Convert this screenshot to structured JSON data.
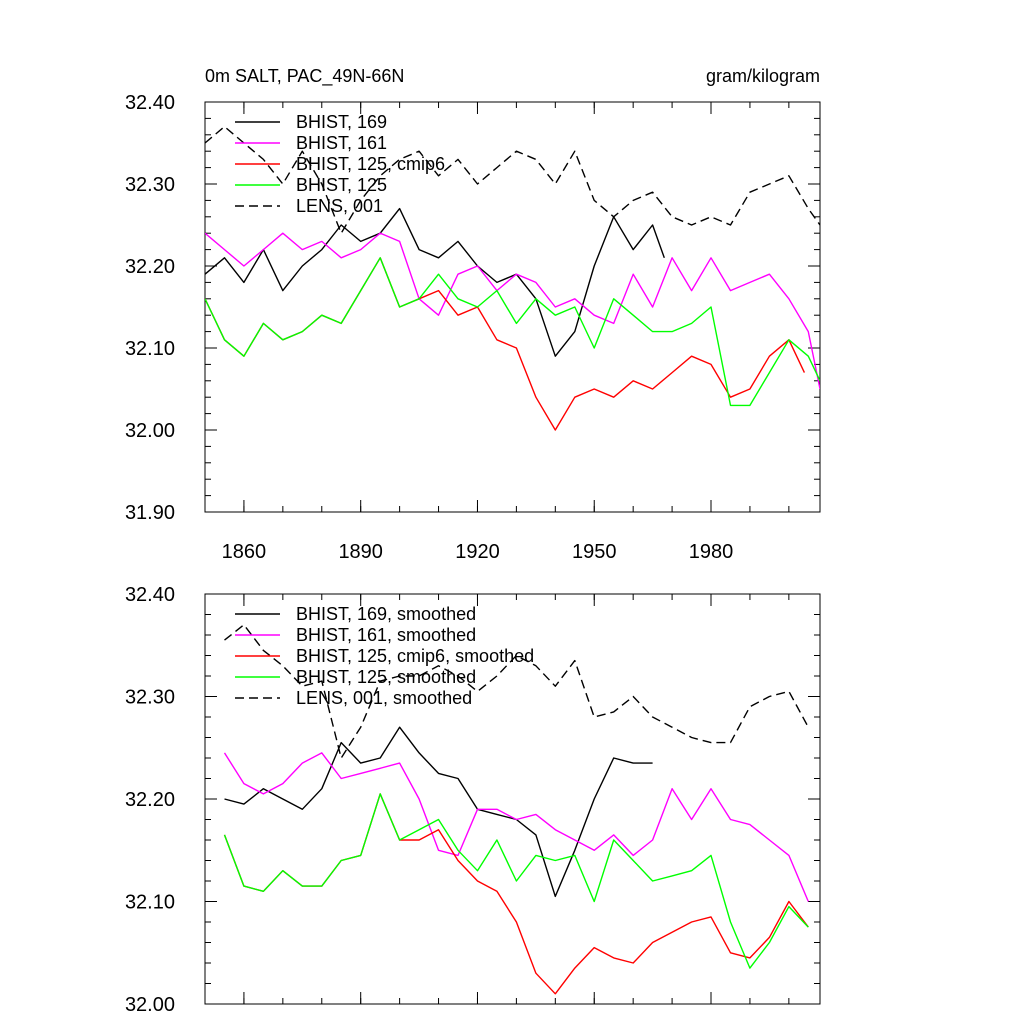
{
  "figure": {
    "title_left": "0m SALT, PAC_49N-66N",
    "title_right": "gram/kilogram"
  },
  "chart_data": [
    {
      "type": "line",
      "title": "0m SALT, PAC_49N-66N",
      "units": "gram/kilogram",
      "xlabel": "",
      "ylabel": "",
      "xlim": [
        1850,
        2008
      ],
      "ylim": [
        31.9,
        32.4
      ],
      "xticks": [
        1860,
        1890,
        1920,
        1950,
        1980
      ],
      "yticks": [
        31.9,
        32.0,
        32.1,
        32.2,
        32.3,
        32.4
      ],
      "yticklabels": [
        "31.90",
        "32.00",
        "32.10",
        "32.20",
        "32.30",
        "32.40"
      ],
      "xticklabels": [
        "1860",
        "1890",
        "1920",
        "1950",
        "1980"
      ],
      "legend_location": "top-left",
      "series": [
        {
          "name": "BHIST, 169",
          "color": "#000000",
          "dash": "solid",
          "x": [
            1850,
            1855,
            1860,
            1865,
            1870,
            1875,
            1880,
            1885,
            1890,
            1895,
            1900,
            1905,
            1910,
            1915,
            1920,
            1925,
            1930,
            1935,
            1940,
            1945,
            1950,
            1955,
            1960,
            1965,
            1968
          ],
          "y": [
            32.19,
            32.21,
            32.18,
            32.22,
            32.17,
            32.2,
            32.22,
            32.25,
            32.23,
            32.24,
            32.27,
            32.22,
            32.21,
            32.23,
            32.2,
            32.18,
            32.19,
            32.16,
            32.09,
            32.12,
            32.2,
            32.26,
            32.22,
            32.25,
            32.21
          ]
        },
        {
          "name": "BHIST, 161",
          "color": "#ff00ff",
          "dash": "solid",
          "x": [
            1850,
            1855,
            1860,
            1865,
            1870,
            1875,
            1880,
            1885,
            1890,
            1895,
            1900,
            1905,
            1910,
            1915,
            1920,
            1925,
            1930,
            1935,
            1940,
            1945,
            1950,
            1955,
            1960,
            1965,
            1970,
            1975,
            1980,
            1985,
            1990,
            1995,
            2000,
            2005,
            2008
          ],
          "y": [
            32.24,
            32.22,
            32.2,
            32.22,
            32.24,
            32.22,
            32.23,
            32.21,
            32.22,
            32.24,
            32.23,
            32.16,
            32.14,
            32.19,
            32.2,
            32.17,
            32.19,
            32.18,
            32.15,
            32.16,
            32.14,
            32.13,
            32.19,
            32.15,
            32.21,
            32.17,
            32.21,
            32.17,
            32.18,
            32.19,
            32.16,
            32.12,
            32.05
          ]
        },
        {
          "name": "BHIST, 125, cmip6",
          "color": "#ff0000",
          "dash": "solid",
          "x": [
            1850,
            1855,
            1860,
            1865,
            1870,
            1875,
            1880,
            1885,
            1890,
            1895,
            1900,
            1905,
            1910,
            1915,
            1920,
            1925,
            1930,
            1935,
            1940,
            1945,
            1950,
            1955,
            1960,
            1965,
            1970,
            1975,
            1980,
            1985,
            1990,
            1995,
            2000,
            2004
          ],
          "y": [
            32.16,
            32.11,
            32.09,
            32.13,
            32.11,
            32.12,
            32.14,
            32.13,
            32.17,
            32.21,
            32.15,
            32.16,
            32.17,
            32.14,
            32.15,
            32.11,
            32.1,
            32.04,
            32.0,
            32.04,
            32.05,
            32.04,
            32.06,
            32.05,
            32.07,
            32.09,
            32.08,
            32.04,
            32.05,
            32.09,
            32.11,
            32.07
          ]
        },
        {
          "name": "BHIST, 125",
          "color": "#00ff00",
          "dash": "solid",
          "x": [
            1850,
            1855,
            1860,
            1865,
            1870,
            1875,
            1880,
            1885,
            1890,
            1895,
            1900,
            1905,
            1910,
            1915,
            1920,
            1925,
            1930,
            1935,
            1940,
            1945,
            1950,
            1955,
            1960,
            1965,
            1970,
            1975,
            1980,
            1985,
            1990,
            1995,
            2000,
            2005,
            2008
          ],
          "y": [
            32.16,
            32.11,
            32.09,
            32.13,
            32.11,
            32.12,
            32.14,
            32.13,
            32.17,
            32.21,
            32.15,
            32.16,
            32.19,
            32.16,
            32.15,
            32.17,
            32.13,
            32.16,
            32.14,
            32.15,
            32.1,
            32.16,
            32.14,
            32.12,
            32.12,
            32.13,
            32.15,
            32.03,
            32.03,
            32.07,
            32.11,
            32.09,
            32.06
          ]
        },
        {
          "name": "LENS, 001",
          "color": "#000000",
          "dash": "dashed",
          "x": [
            1850,
            1855,
            1860,
            1865,
            1870,
            1875,
            1880,
            1885,
            1890,
            1895,
            1900,
            1905,
            1910,
            1915,
            1920,
            1925,
            1930,
            1935,
            1940,
            1945,
            1950,
            1955,
            1960,
            1965,
            1970,
            1975,
            1980,
            1985,
            1990,
            1995,
            2000,
            2005,
            2008
          ],
          "y": [
            32.35,
            32.37,
            32.35,
            32.33,
            32.3,
            32.34,
            32.3,
            32.24,
            32.28,
            32.31,
            32.33,
            32.34,
            32.31,
            32.33,
            32.3,
            32.32,
            32.34,
            32.33,
            32.3,
            32.34,
            32.28,
            32.26,
            32.28,
            32.29,
            32.26,
            32.25,
            32.26,
            32.25,
            32.29,
            32.3,
            32.31,
            32.27,
            32.25
          ]
        }
      ]
    },
    {
      "type": "line",
      "title": "",
      "xlim": [
        1850,
        2008
      ],
      "ylim": [
        32.0,
        32.4
      ],
      "xticks": [
        1860,
        1890,
        1920,
        1950,
        1980
      ],
      "yticks": [
        32.0,
        32.1,
        32.2,
        32.3,
        32.4
      ],
      "yticklabels": [
        "32.00",
        "32.10",
        "32.20",
        "32.30",
        "32.40"
      ],
      "legend_location": "top-left",
      "series": [
        {
          "name": "BHIST, 169, smoothed",
          "color": "#000000",
          "dash": "solid",
          "x": [
            1855,
            1860,
            1865,
            1870,
            1875,
            1880,
            1885,
            1890,
            1895,
            1900,
            1905,
            1910,
            1915,
            1920,
            1925,
            1930,
            1935,
            1940,
            1945,
            1950,
            1955,
            1960,
            1965
          ],
          "y": [
            32.2,
            32.195,
            32.21,
            32.2,
            32.19,
            32.21,
            32.255,
            32.235,
            32.24,
            32.27,
            32.245,
            32.225,
            32.22,
            32.19,
            32.185,
            32.18,
            32.165,
            32.105,
            32.15,
            32.2,
            32.24,
            32.235,
            32.235
          ]
        },
        {
          "name": "BHIST, 161, smoothed",
          "color": "#ff00ff",
          "dash": "solid",
          "x": [
            1855,
            1860,
            1865,
            1870,
            1875,
            1880,
            1885,
            1890,
            1895,
            1900,
            1905,
            1910,
            1915,
            1920,
            1925,
            1930,
            1935,
            1940,
            1945,
            1950,
            1955,
            1960,
            1965,
            1970,
            1975,
            1980,
            1985,
            1990,
            1995,
            2000,
            2005
          ],
          "y": [
            32.245,
            32.215,
            32.205,
            32.215,
            32.235,
            32.245,
            32.22,
            32.225,
            32.23,
            32.235,
            32.2,
            32.15,
            32.145,
            32.19,
            32.19,
            32.18,
            32.185,
            32.17,
            32.16,
            32.15,
            32.165,
            32.145,
            32.16,
            32.21,
            32.18,
            32.21,
            32.18,
            32.175,
            32.16,
            32.145,
            32.1
          ]
        },
        {
          "name": "BHIST, 125, cmip6, smoothed",
          "color": "#ff0000",
          "dash": "solid",
          "x": [
            1855,
            1860,
            1865,
            1870,
            1875,
            1880,
            1885,
            1890,
            1895,
            1900,
            1905,
            1910,
            1915,
            1920,
            1925,
            1930,
            1935,
            1940,
            1945,
            1950,
            1955,
            1960,
            1965,
            1970,
            1975,
            1980,
            1985,
            1990,
            1995,
            2000,
            2005
          ],
          "y": [
            32.165,
            32.115,
            32.11,
            32.13,
            32.115,
            32.115,
            32.14,
            32.145,
            32.205,
            32.16,
            32.16,
            32.17,
            32.14,
            32.12,
            32.11,
            32.08,
            32.03,
            32.01,
            32.035,
            32.055,
            32.045,
            32.04,
            32.06,
            32.07,
            32.08,
            32.085,
            32.05,
            32.045,
            32.065,
            32.1,
            32.075
          ]
        },
        {
          "name": "BHIST, 125, smoothed",
          "color": "#00ff00",
          "dash": "solid",
          "x": [
            1855,
            1860,
            1865,
            1870,
            1875,
            1880,
            1885,
            1890,
            1895,
            1900,
            1905,
            1910,
            1915,
            1920,
            1925,
            1930,
            1935,
            1940,
            1945,
            1950,
            1955,
            1960,
            1965,
            1970,
            1975,
            1980,
            1985,
            1990,
            1995,
            2000,
            2005
          ],
          "y": [
            32.165,
            32.115,
            32.11,
            32.13,
            32.115,
            32.115,
            32.14,
            32.145,
            32.205,
            32.16,
            32.17,
            32.18,
            32.15,
            32.13,
            32.16,
            32.12,
            32.145,
            32.14,
            32.145,
            32.1,
            32.16,
            32.14,
            32.12,
            32.125,
            32.13,
            32.145,
            32.08,
            32.035,
            32.06,
            32.095,
            32.075
          ]
        },
        {
          "name": "LENS, 001, smoothed",
          "color": "#000000",
          "dash": "dashed",
          "x": [
            1855,
            1860,
            1865,
            1870,
            1875,
            1880,
            1885,
            1890,
            1895,
            1900,
            1905,
            1910,
            1915,
            1920,
            1925,
            1930,
            1935,
            1940,
            1945,
            1950,
            1955,
            1960,
            1965,
            1970,
            1975,
            1980,
            1985,
            1990,
            1995,
            2000,
            2005
          ],
          "y": [
            32.355,
            32.37,
            32.345,
            32.33,
            32.31,
            32.315,
            32.24,
            32.27,
            32.315,
            32.32,
            32.32,
            32.33,
            32.32,
            32.305,
            32.32,
            32.34,
            32.33,
            32.31,
            32.335,
            32.28,
            32.285,
            32.3,
            32.28,
            32.27,
            32.26,
            32.255,
            32.255,
            32.29,
            32.3,
            32.305,
            32.27
          ]
        }
      ]
    }
  ]
}
